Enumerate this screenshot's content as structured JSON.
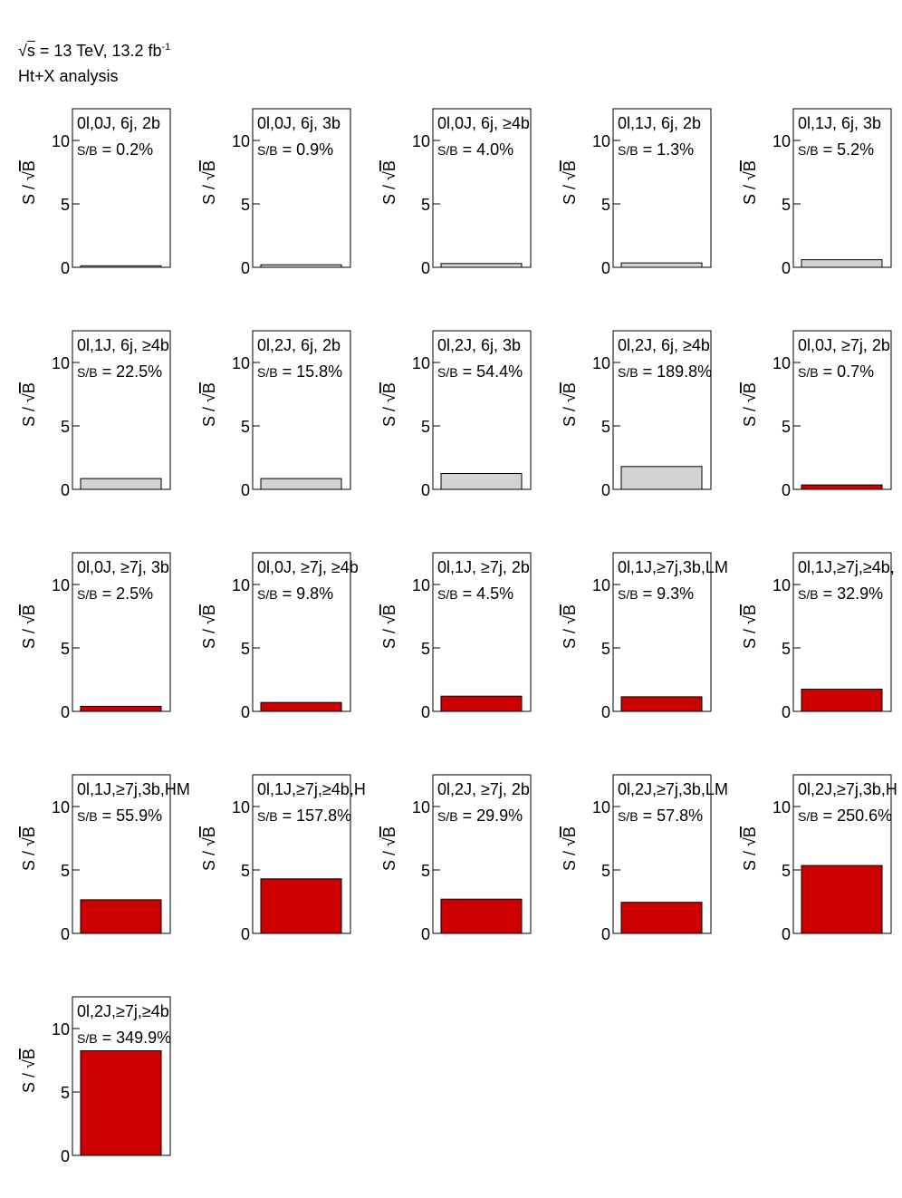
{
  "header": {
    "energy_prefix": "√",
    "energy_s": "s",
    "energy_text": " = 13 TeV, 13.2 fb",
    "lumi_exp": "-1",
    "analysis": "Ht+X analysis"
  },
  "colors": {
    "fill_a": "#d3d3d3",
    "fill_b": "#cc0000",
    "frame": "#000000"
  },
  "chart_data": {
    "type": "bar",
    "ylabel": "S / √B",
    "ylabel_prefix": "S / ",
    "ylabel_sqrt": "√",
    "ylabel_radicand": "B",
    "ylim": [
      0,
      12.5
    ],
    "yticks": [
      0,
      5,
      10
    ],
    "ytick_labels": [
      "0",
      "5",
      "10"
    ],
    "grid": false,
    "panels": [
      {
        "label": "0l,0J, 6j, 2b",
        "sb": "S/B = 0.2%",
        "value": 0.12,
        "group": "a"
      },
      {
        "label": "0l,0J, 6j, 3b",
        "sb": "S/B = 0.9%",
        "value": 0.2,
        "group": "a"
      },
      {
        "label": "0l,0J, 6j, ≥4b",
        "sb": "S/B = 4.0%",
        "value": 0.3,
        "group": "a"
      },
      {
        "label": "0l,1J, 6j, 2b",
        "sb": "S/B = 1.3%",
        "value": 0.35,
        "group": "a"
      },
      {
        "label": "0l,1J, 6j, 3b",
        "sb": "S/B = 5.2%",
        "value": 0.6,
        "group": "a"
      },
      {
        "label": "0l,1J, 6j, ≥4b",
        "sb": "S/B = 22.5%",
        "value": 0.85,
        "group": "a"
      },
      {
        "label": "0l,2J, 6j, 2b",
        "sb": "S/B = 15.8%",
        "value": 0.85,
        "group": "a"
      },
      {
        "label": "0l,2J, 6j, 3b",
        "sb": "S/B = 54.4%",
        "value": 1.25,
        "group": "a"
      },
      {
        "label": "0l,2J, 6j, ≥4b",
        "sb": "S/B = 189.8%",
        "value": 1.8,
        "group": "a"
      },
      {
        "label": "0l,0J, ≥7j, 2b",
        "sb": "S/B = 0.7%",
        "value": 0.35,
        "group": "b"
      },
      {
        "label": "0l,0J, ≥7j, 3b",
        "sb": "S/B = 2.5%",
        "value": 0.4,
        "group": "b"
      },
      {
        "label": "0l,0J, ≥7j, ≥4b",
        "sb": "S/B = 9.8%",
        "value": 0.7,
        "group": "b"
      },
      {
        "label": "0l,1J, ≥7j, 2b",
        "sb": "S/B = 4.5%",
        "value": 1.2,
        "group": "b"
      },
      {
        "label": "0l,1J,≥7j,3b,LM",
        "sb": "S/B = 9.3%",
        "value": 1.15,
        "group": "b"
      },
      {
        "label": "0l,1J,≥7j,≥4b,",
        "sb": "S/B = 32.9%",
        "value": 1.75,
        "group": "b"
      },
      {
        "label": "0l,1J,≥7j,3b,HM",
        "sb": "S/B = 55.9%",
        "value": 2.65,
        "group": "b"
      },
      {
        "label": "0l,1J,≥7j,≥4b,H",
        "sb": "S/B = 157.8%",
        "value": 4.3,
        "group": "b"
      },
      {
        "label": "0l,2J, ≥7j, 2b",
        "sb": "S/B = 29.9%",
        "value": 2.7,
        "group": "b"
      },
      {
        "label": "0l,2J,≥7j,3b,LM",
        "sb": "S/B = 57.8%",
        "value": 2.45,
        "group": "b"
      },
      {
        "label": "0l,2J,≥7j,3b,H",
        "sb": "S/B = 250.6%",
        "value": 5.35,
        "group": "b"
      },
      {
        "label": "0l,2J,≥7j,≥4b",
        "sb": "S/B = 349.9%",
        "value": 8.25,
        "group": "b"
      }
    ]
  }
}
